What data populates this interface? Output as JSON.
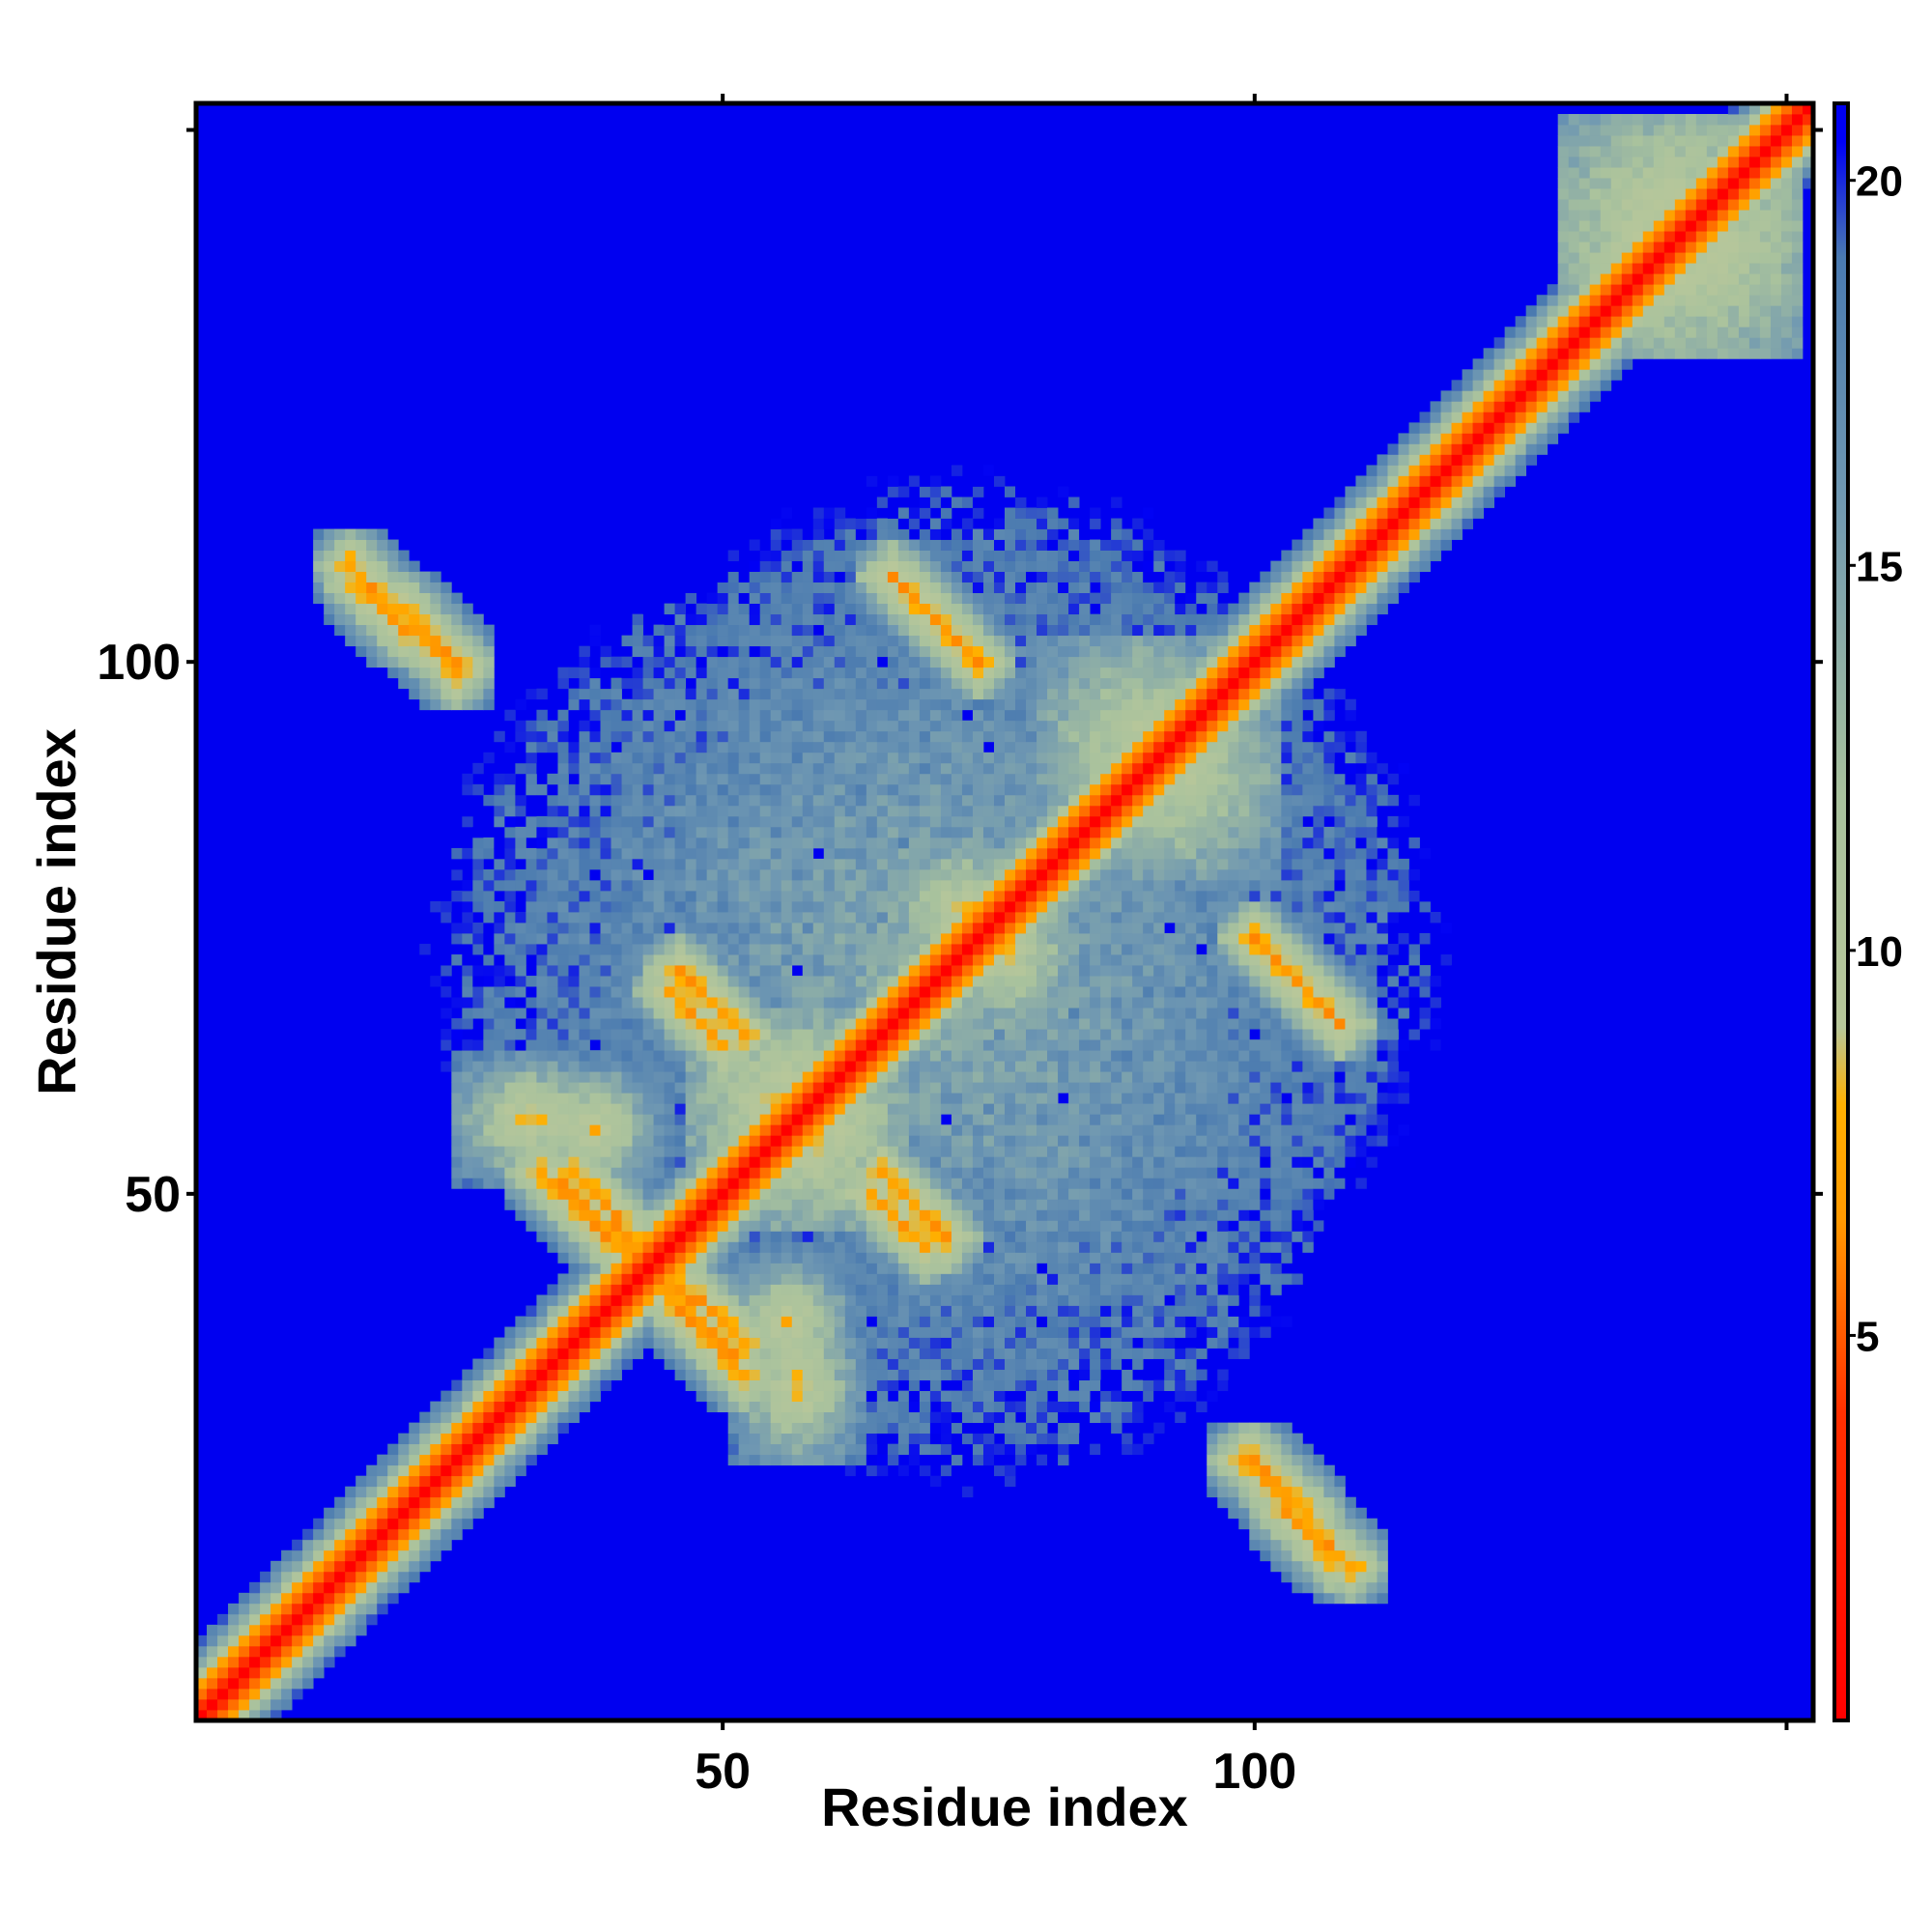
{
  "chart_data": {
    "type": "heatmap",
    "title": "",
    "xlabel": "Residue index",
    "ylabel": "Residue index",
    "n_residues": 152,
    "x_range": [
      1,
      152
    ],
    "y_range": [
      1,
      152
    ],
    "x_ticks": [
      50,
      100
    ],
    "x_tick_labels": [
      "50",
      "100"
    ],
    "y_ticks": [
      50,
      100
    ],
    "y_tick_labels": [
      "50",
      "100"
    ],
    "colorbar": {
      "range": [
        0,
        21
      ],
      "ticks": [
        5,
        10,
        15,
        20
      ],
      "tick_labels": [
        "5",
        "10",
        "15",
        "20"
      ],
      "stops": [
        {
          "value": 0,
          "color": "#ff0000"
        },
        {
          "value": 4,
          "color": "#ff3000"
        },
        {
          "value": 6.5,
          "color": "#ff9900"
        },
        {
          "value": 8,
          "color": "#ffb000"
        },
        {
          "value": 9,
          "color": "#b8c79a"
        },
        {
          "value": 12,
          "color": "#a9c29d"
        },
        {
          "value": 16,
          "color": "#6e97b2"
        },
        {
          "value": 19,
          "color": "#4a7ab0"
        },
        {
          "value": 20.5,
          "color": "#0000f5"
        }
      ],
      "background_value": 21
    },
    "background_color": "#0000f0",
    "features": [
      {
        "kind": "diagonal",
        "from": 1,
        "to": 152,
        "core_distance": 3.8,
        "band_width": 4
      },
      {
        "kind": "anti_band",
        "x": [
          15,
          25
        ],
        "y": [
          109,
          100
        ],
        "distance": 6
      },
      {
        "kind": "anti_band",
        "x": [
          33,
          51
        ],
        "y": [
          52,
          35
        ],
        "distance": 6
      },
      {
        "kind": "anti_band",
        "x": [
          44,
          52
        ],
        "y": [
          43,
          36
        ],
        "distance": 6
      },
      {
        "kind": "anti_band",
        "x": [
          66,
          74
        ],
        "y": [
          108,
          100
        ],
        "distance": 6
      },
      {
        "kind": "anti_band",
        "x": [
          99,
          107
        ],
        "y": [
          25,
          16
        ],
        "distance": 6
      },
      {
        "kind": "anti_band",
        "x": [
          100,
          106
        ],
        "y": [
          74,
          68
        ],
        "distance": 6
      },
      {
        "kind": "anti_band",
        "x": [
          65,
          71
        ],
        "y": [
          52,
          46
        ],
        "distance": 6
      },
      {
        "kind": "anti_band",
        "x": [
          45,
          50
        ],
        "y": [
          69,
          64
        ],
        "distance": 6
      },
      {
        "kind": "cluster",
        "x": 140,
        "y": 140,
        "rx": 8,
        "ry": 8,
        "distance": 7
      },
      {
        "kind": "cluster",
        "x": 58,
        "y": 56,
        "rx": 6,
        "ry": 6,
        "distance": 7
      },
      {
        "kind": "cluster",
        "x": 90,
        "y": 92,
        "rx": 7,
        "ry": 7,
        "distance": 8
      },
      {
        "kind": "cluster",
        "x": 32,
        "y": 57,
        "rx": 4,
        "ry": 3,
        "distance": 7
      },
      {
        "kind": "cluster",
        "x": 56,
        "y": 38,
        "rx": 3,
        "ry": 3,
        "distance": 7
      },
      {
        "kind": "cluster",
        "x": 73,
        "y": 76,
        "rx": 4,
        "ry": 4,
        "distance": 7
      },
      {
        "kind": "cloud",
        "x": 70,
        "y": 73,
        "rx": 50,
        "ry": 42,
        "distance": 12
      }
    ]
  }
}
